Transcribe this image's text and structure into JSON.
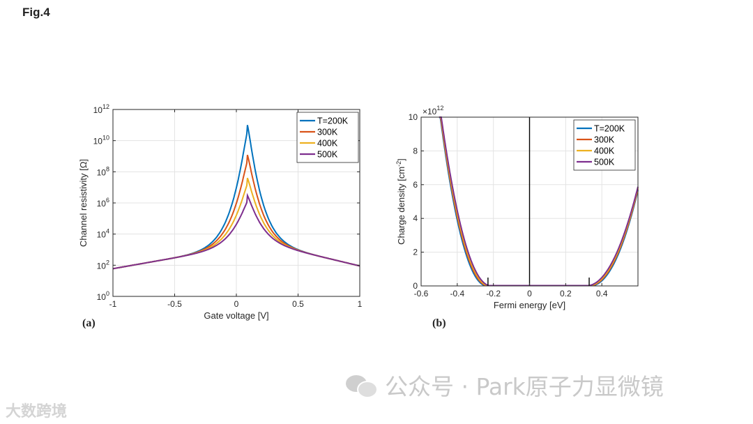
{
  "figure": {
    "title": "Fig.4"
  },
  "watermark": {
    "text": "公众号 · Park原子力显微镜",
    "small": "大数跨境"
  },
  "chart_data": [
    {
      "panel": "(a)",
      "type": "line",
      "xlabel": "Gate voltage [V]",
      "ylabel": "Channel resistivity [Ω]",
      "yscale": "log",
      "xlim": [
        -1,
        1
      ],
      "ylim": [
        1,
        1000000000000.0
      ],
      "xticks": [
        "-1",
        "-0.5",
        "0",
        "0.5",
        "1"
      ],
      "yticks_exponents": [
        "0",
        "2",
        "4",
        "6",
        "8",
        "10",
        "12"
      ],
      "grid": true,
      "legend": "top-right",
      "series": [
        {
          "name": "T=200K",
          "color": "#0072BD",
          "peak": 100000000000.0
        },
        {
          "name": "300K",
          "color": "#D95319",
          "peak": 1200000000.0
        },
        {
          "name": "400K",
          "color": "#EDB120",
          "peak": 40000000.0
        },
        {
          "name": "500K",
          "color": "#7E2F8E",
          "peak": 3000000.0
        }
      ],
      "peak_x": 0.09,
      "tail_values": {
        "x": [
          -1,
          -0.5,
          0.5,
          1
        ],
        "y": [
          60,
          300,
          800,
          90
        ]
      }
    },
    {
      "panel": "(b)",
      "type": "line",
      "xlabel": "Fermi energy [eV]",
      "ylabel": "Charge density [cm",
      "ylabel_sup": "-2",
      "ylabel_end": "]",
      "y_multiplier_base": "×10",
      "y_multiplier_exp": "12",
      "xlim": [
        -0.6,
        0.6
      ],
      "ylim": [
        0,
        10
      ],
      "xticks": [
        "-0.6",
        "-0.4",
        "-0.2",
        "0",
        "0.2",
        "0.4"
      ],
      "yticks": [
        "0",
        "2",
        "4",
        "6",
        "8",
        "10"
      ],
      "grid": true,
      "legend": "top-right",
      "vline_x": 0,
      "markers_x": [
        -0.23,
        0.33
      ],
      "series": [
        {
          "name": "T=200K",
          "color": "#0072BD"
        },
        {
          "name": "300K",
          "color": "#D95319"
        },
        {
          "name": "400K",
          "color": "#EDB120"
        },
        {
          "name": "500K",
          "color": "#7E2F8E"
        }
      ],
      "curve": {
        "left_edge_x": -0.23,
        "right_edge_x": 0.33,
        "y_at_-0.5": 10,
        "y_at_0.6": 5.4
      }
    }
  ]
}
